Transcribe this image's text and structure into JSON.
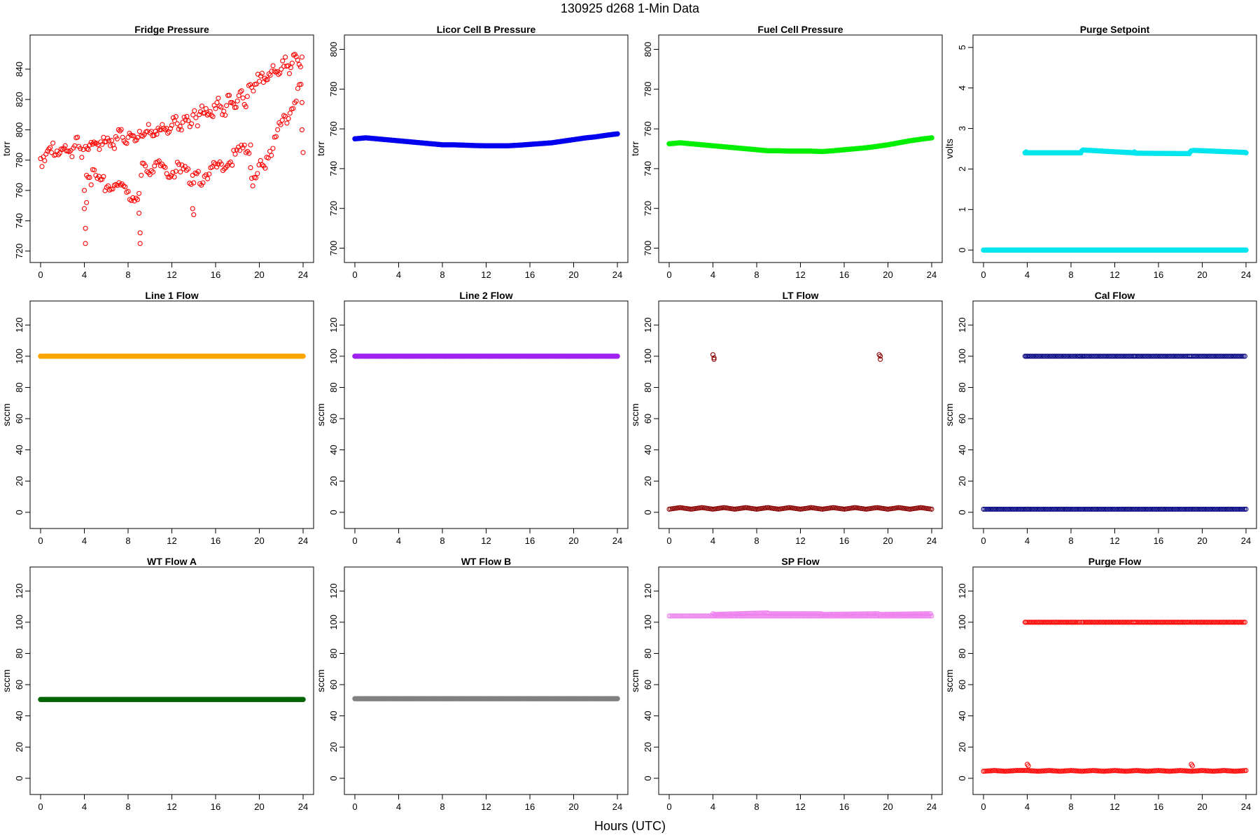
{
  "figure": {
    "title": "130925   d268   1-Min Data",
    "xlabel": "Hours (UTC)"
  },
  "chart_data": [
    {
      "type": "scatter",
      "title": "Fridge Pressure",
      "xlabel": "",
      "ylabel": "torr",
      "xlim": [
        0,
        24
      ],
      "ylim": [
        718,
        857
      ],
      "xticks": [
        0,
        4,
        8,
        12,
        16,
        20,
        24
      ],
      "yticks": [
        720,
        740,
        760,
        780,
        800,
        820,
        840
      ],
      "grid": false,
      "color": "#ff0000",
      "marker": "open-circle",
      "series": [
        {
          "x": [
            0,
            0.5,
            1,
            1.5,
            2,
            2.5,
            3,
            3.5,
            3.9,
            4.1,
            4.5,
            5,
            5.5,
            6,
            6.5,
            7,
            7.5,
            8,
            8.5,
            8.9,
            9.2,
            9.5,
            10,
            10.5,
            11,
            11.5,
            12,
            12.5,
            13,
            13.5,
            13.8,
            14.2,
            14.5,
            15,
            15.5,
            16,
            16.5,
            17,
            17.5,
            18,
            18.5,
            18.9,
            19.3,
            19.6,
            20,
            20.5,
            21,
            21.5,
            22,
            22.5,
            23,
            23.5,
            23.9
          ],
          "y": [
            781,
            784,
            785,
            786,
            787,
            786,
            788,
            789,
            787,
            789,
            790,
            791,
            792,
            792,
            793,
            794,
            795,
            795,
            796,
            795,
            796,
            797,
            798,
            799,
            800,
            801,
            803,
            804,
            805,
            806,
            804,
            808,
            810,
            811,
            812,
            814,
            815,
            816,
            818,
            819,
            821,
            822,
            828,
            830,
            832,
            834,
            836,
            838,
            840,
            842,
            844,
            846,
            848
          ]
        },
        {
          "x": [
            4.0,
            4.0,
            4.1,
            4.1,
            4.2,
            4.2,
            9.0,
            9.0,
            9.1,
            9.1,
            9.2,
            9.3,
            13.9,
            13.9,
            14.0,
            14.0,
            19.2,
            19.2,
            19.3,
            19.4,
            23.8,
            23.9,
            23.9,
            24.0
          ],
          "y": [
            760,
            748,
            735,
            725,
            752,
            770,
            758,
            745,
            732,
            725,
            770,
            778,
            770,
            748,
            744,
            765,
            790,
            775,
            768,
            763,
            830,
            818,
            800,
            785
          ]
        }
      ]
    },
    {
      "type": "scatter",
      "title": "Licor Cell B Pressure",
      "xlabel": "",
      "ylabel": "torr",
      "xlim": [
        0,
        24
      ],
      "ylim": [
        697,
        803
      ],
      "xticks": [
        0,
        4,
        8,
        12,
        16,
        20,
        24
      ],
      "yticks": [
        700,
        720,
        740,
        760,
        780,
        800
      ],
      "grid": false,
      "color": "#0000ee",
      "marker": "filled-circle",
      "series": [
        {
          "x": [
            0,
            1,
            2,
            3,
            4,
            5,
            6,
            7,
            8,
            9,
            10,
            11,
            12,
            13,
            14,
            15,
            16,
            17,
            18,
            19,
            20,
            21,
            22,
            23,
            24
          ],
          "y": [
            755,
            755.5,
            755,
            754.5,
            754,
            753.5,
            753,
            752.5,
            752,
            752,
            751.8,
            751.6,
            751.5,
            751.5,
            751.5,
            751.8,
            752.2,
            752.6,
            753,
            753.8,
            754.6,
            755.4,
            756,
            756.8,
            757.5
          ]
        }
      ]
    },
    {
      "type": "scatter",
      "title": "Fuel Cell Pressure",
      "xlabel": "",
      "ylabel": "torr",
      "xlim": [
        0,
        24
      ],
      "ylim": [
        697,
        803
      ],
      "xticks": [
        0,
        4,
        8,
        12,
        16,
        20,
        24
      ],
      "yticks": [
        700,
        720,
        740,
        760,
        780,
        800
      ],
      "grid": false,
      "color": "#00ee00",
      "marker": "filled-circle",
      "series": [
        {
          "x": [
            0,
            1,
            2,
            3,
            4,
            5,
            6,
            7,
            8,
            9,
            10,
            11,
            12,
            13,
            14,
            15,
            16,
            17,
            18,
            19,
            20,
            21,
            22,
            23,
            24
          ],
          "y": [
            752.5,
            753,
            752.5,
            752,
            751.5,
            751,
            750.5,
            750,
            749.5,
            749,
            749,
            748.8,
            748.8,
            748.8,
            748.6,
            749,
            749.5,
            750,
            750.5,
            751.2,
            752,
            753,
            754,
            754.8,
            755.5
          ]
        }
      ]
    },
    {
      "type": "scatter",
      "title": "Purge Setpoint",
      "xlabel": "",
      "ylabel": "volts",
      "xlim": [
        0,
        24
      ],
      "ylim": [
        -0.1,
        5.1
      ],
      "xticks": [
        0,
        4,
        8,
        12,
        16,
        20,
        24
      ],
      "yticks": [
        0,
        1,
        2,
        3,
        4,
        5
      ],
      "grid": false,
      "color": "#00e5ee",
      "marker": "filled-circle",
      "series": [
        {
          "x": [
            0,
            1,
            2,
            3,
            4,
            5,
            6,
            7,
            8,
            9,
            10,
            11,
            12,
            13,
            14,
            15,
            16,
            17,
            18,
            19,
            20,
            21,
            22,
            23,
            24
          ],
          "y": [
            0,
            0,
            0,
            0,
            0,
            0,
            0,
            0,
            0,
            0,
            0,
            0,
            0,
            0,
            0,
            0,
            0,
            0,
            0,
            0,
            0,
            0,
            0,
            0,
            0
          ]
        },
        {
          "x": [
            3.8,
            3.9,
            4.0,
            8.9,
            9.0,
            9.1,
            13.7,
            13.8,
            13.9,
            18.8,
            18.9,
            19.0,
            19.2,
            23.9,
            24.0
          ],
          "y": [
            2.4,
            2.42,
            2.4,
            2.4,
            2.45,
            2.47,
            2.4,
            2.42,
            2.39,
            2.38,
            2.42,
            2.45,
            2.46,
            2.41,
            2.4
          ]
        }
      ]
    },
    {
      "type": "scatter",
      "title": "Line 1 Flow",
      "xlabel": "",
      "ylabel": "sccm",
      "xlim": [
        0,
        24
      ],
      "ylim": [
        -5,
        130
      ],
      "xticks": [
        0,
        4,
        8,
        12,
        16,
        20,
        24
      ],
      "yticks": [
        0,
        20,
        40,
        60,
        80,
        100,
        120
      ],
      "grid": false,
      "color": "#ffa500",
      "marker": "filled-circle",
      "series": [
        {
          "x": [
            0,
            2,
            4,
            6,
            8,
            10,
            12,
            14,
            16,
            18,
            20,
            22,
            24
          ],
          "y": [
            100,
            100,
            100,
            100,
            100,
            100,
            100,
            100,
            100,
            100,
            100,
            100,
            100
          ]
        }
      ]
    },
    {
      "type": "scatter",
      "title": "Line 2 Flow",
      "xlabel": "",
      "ylabel": "sccm",
      "xlim": [
        0,
        24
      ],
      "ylim": [
        -5,
        130
      ],
      "xticks": [
        0,
        4,
        8,
        12,
        16,
        20,
        24
      ],
      "yticks": [
        0,
        20,
        40,
        60,
        80,
        100,
        120
      ],
      "grid": false,
      "color": "#a020f0",
      "marker": "filled-circle",
      "series": [
        {
          "x": [
            0,
            2,
            4,
            6,
            8,
            10,
            12,
            14,
            16,
            18,
            20,
            22,
            24
          ],
          "y": [
            100,
            100,
            100,
            100,
            100,
            100,
            100,
            100,
            100,
            100,
            100,
            100,
            100
          ]
        }
      ]
    },
    {
      "type": "scatter",
      "title": "LT Flow",
      "xlabel": "",
      "ylabel": "sccm",
      "xlim": [
        0,
        24
      ],
      "ylim": [
        -5,
        130
      ],
      "xticks": [
        0,
        4,
        8,
        12,
        16,
        20,
        24
      ],
      "yticks": [
        0,
        20,
        40,
        60,
        80,
        100,
        120
      ],
      "grid": false,
      "color": "#8b0000",
      "marker": "open-circle",
      "series": [
        {
          "x": [
            0,
            1,
            2,
            3,
            4,
            5,
            6,
            7,
            8,
            9,
            10,
            11,
            12,
            13,
            14,
            15,
            16,
            17,
            18,
            19,
            20,
            21,
            22,
            23,
            24
          ],
          "y": [
            2,
            3,
            2,
            3,
            2,
            3,
            2,
            3,
            2,
            3,
            2,
            3,
            2,
            3,
            2,
            3,
            2,
            3,
            2,
            3,
            2,
            3,
            2,
            3,
            2
          ]
        },
        {
          "x": [
            4.0,
            4.1,
            4.1,
            19.2,
            19.3,
            19.3
          ],
          "y": [
            101,
            99,
            98,
            101,
            100,
            98
          ]
        }
      ]
    },
    {
      "type": "scatter",
      "title": "Cal Flow",
      "xlabel": "",
      "ylabel": "sccm",
      "xlim": [
        0,
        24
      ],
      "ylim": [
        -5,
        130
      ],
      "xticks": [
        0,
        4,
        8,
        12,
        16,
        20,
        24
      ],
      "yticks": [
        0,
        20,
        40,
        60,
        80,
        100,
        120
      ],
      "grid": false,
      "color": "#000080",
      "marker": "open-circle",
      "series": [
        {
          "x": [
            0,
            2,
            4,
            6,
            8,
            10,
            12,
            14,
            16,
            18,
            20,
            22,
            24
          ],
          "y": [
            2,
            2,
            2,
            2,
            2,
            2,
            2,
            2,
            2,
            2,
            2,
            2,
            2
          ]
        },
        {
          "x": [
            3.8,
            3.9,
            4.0,
            4.1,
            8.8,
            8.9,
            9.0,
            9.1,
            13.7,
            13.8,
            13.9,
            18.8,
            18.9,
            19.3,
            23.9
          ],
          "y": [
            100,
            100,
            100,
            100,
            100,
            100,
            100,
            100,
            100,
            100,
            100,
            100,
            100,
            100,
            100
          ]
        }
      ]
    },
    {
      "type": "scatter",
      "title": "WT Flow A",
      "xlabel": "",
      "ylabel": "sccm",
      "xlim": [
        0,
        24
      ],
      "ylim": [
        -5,
        130
      ],
      "xticks": [
        0,
        4,
        8,
        12,
        16,
        20,
        24
      ],
      "yticks": [
        0,
        20,
        40,
        60,
        80,
        100,
        120
      ],
      "grid": false,
      "color": "#006400",
      "marker": "filled-circle",
      "series": [
        {
          "x": [
            0,
            2,
            4,
            6,
            8,
            10,
            12,
            14,
            16,
            18,
            20,
            22,
            24
          ],
          "y": [
            50.5,
            50.5,
            50.5,
            50.5,
            50.5,
            50.5,
            50.5,
            50.5,
            50.5,
            50.5,
            50.5,
            50.5,
            50.5
          ]
        }
      ]
    },
    {
      "type": "scatter",
      "title": "WT Flow B",
      "xlabel": "",
      "ylabel": "sccm",
      "xlim": [
        0,
        24
      ],
      "ylim": [
        -5,
        130
      ],
      "xticks": [
        0,
        4,
        8,
        12,
        16,
        20,
        24
      ],
      "yticks": [
        0,
        20,
        40,
        60,
        80,
        100,
        120
      ],
      "grid": false,
      "color": "#808080",
      "marker": "filled-circle",
      "series": [
        {
          "x": [
            0,
            2,
            4,
            6,
            8,
            10,
            12,
            14,
            16,
            18,
            20,
            22,
            24
          ],
          "y": [
            51,
            51,
            51,
            51,
            51,
            51,
            51,
            51,
            51,
            51,
            51,
            51,
            51
          ]
        }
      ]
    },
    {
      "type": "scatter",
      "title": "SP Flow",
      "xlabel": "",
      "ylabel": "sccm",
      "xlim": [
        0,
        24
      ],
      "ylim": [
        -5,
        130
      ],
      "xticks": [
        0,
        4,
        8,
        12,
        16,
        20,
        24
      ],
      "yticks": [
        0,
        20,
        40,
        60,
        80,
        100,
        120
      ],
      "grid": false,
      "color": "#ee82ee",
      "marker": "open-circle",
      "series": [
        {
          "x": [
            0,
            2,
            4,
            6,
            8,
            10,
            12,
            14,
            16,
            18,
            20,
            22,
            24
          ],
          "y": [
            104,
            104,
            104,
            104,
            104,
            104,
            104,
            104,
            104,
            104,
            104,
            104,
            104
          ]
        },
        {
          "x": [
            4.0,
            4.1,
            9.0,
            9.1,
            13.9,
            14.0,
            19.1,
            19.2,
            23.9
          ],
          "y": [
            105.5,
            105,
            106,
            105.5,
            105.5,
            105,
            105.5,
            105,
            105.5
          ]
        }
      ]
    },
    {
      "type": "scatter",
      "title": "Purge Flow",
      "xlabel": "",
      "ylabel": "sccm",
      "xlim": [
        0,
        24
      ],
      "ylim": [
        -5,
        130
      ],
      "xticks": [
        0,
        4,
        8,
        12,
        16,
        20,
        24
      ],
      "yticks": [
        0,
        20,
        40,
        60,
        80,
        100,
        120
      ],
      "grid": false,
      "color": "#ff0000",
      "marker": "open-circle",
      "series": [
        {
          "x": [
            0,
            1,
            2,
            3,
            4,
            5,
            6,
            7,
            8,
            9,
            10,
            11,
            12,
            13,
            14,
            15,
            16,
            17,
            18,
            19,
            20,
            21,
            22,
            23,
            24
          ],
          "y": [
            4.5,
            5,
            4.5,
            5,
            5,
            4.5,
            5,
            4.5,
            5,
            4.5,
            5,
            4.5,
            5,
            4.5,
            5,
            4.5,
            5,
            4.5,
            5,
            4.5,
            5,
            4.5,
            5,
            4.5,
            5
          ]
        },
        {
          "x": [
            3.8,
            3.9,
            8.8,
            9.0,
            13.7,
            13.8,
            18.8,
            19.1,
            23.9
          ],
          "y": [
            100,
            100,
            100,
            100,
            100,
            100,
            100,
            100,
            100
          ]
        },
        {
          "x": [
            4.0,
            4.1,
            19.0,
            19.1
          ],
          "y": [
            9,
            8,
            9,
            8
          ]
        }
      ]
    }
  ]
}
